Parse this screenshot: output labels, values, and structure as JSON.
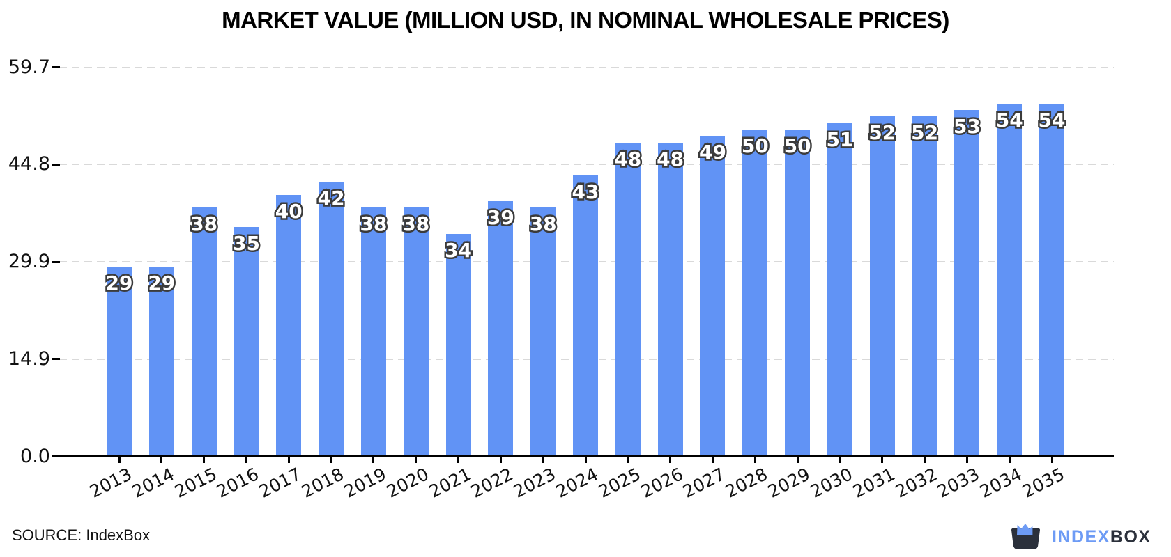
{
  "title": "MARKET VALUE (MILLION USD, IN NOMINAL WHOLESALE PRICES)",
  "source_note": "SOURCE: IndexBox",
  "logo": {
    "word_index": "INDEX",
    "word_box": "BOX"
  },
  "colors": {
    "bar": "#6193F5",
    "value_label_fill": "#ffffff",
    "value_label_stroke": "#3b3b3b",
    "gridline": "#d9d9d9",
    "axis": "#000000",
    "logo_blue": "#6d9bf5",
    "logo_dark": "#2b303b"
  },
  "chart_data": {
    "type": "bar",
    "title": "MARKET VALUE (MILLION USD, IN NOMINAL WHOLESALE PRICES)",
    "categories": [
      "2013",
      "2014",
      "2015",
      "2016",
      "2017",
      "2018",
      "2019",
      "2020",
      "2021",
      "2022",
      "2023",
      "2024",
      "2025",
      "2026",
      "2027",
      "2028",
      "2029",
      "2030",
      "2031",
      "2032",
      "2033",
      "2034",
      "2035"
    ],
    "values": [
      29,
      29,
      38,
      35,
      40,
      42,
      38,
      38,
      34,
      39,
      38,
      43,
      48,
      48,
      49,
      50,
      50,
      51,
      52,
      52,
      53,
      54,
      54
    ],
    "xlabel": "",
    "ylabel": "",
    "ylim": [
      0,
      59.7
    ],
    "yticks": [
      {
        "label": "0.0",
        "value": 0
      },
      {
        "label": "14.9",
        "value": 14.925
      },
      {
        "label": "29.9",
        "value": 29.85
      },
      {
        "label": "44.8",
        "value": 44.775
      },
      {
        "label": "59.7",
        "value": 59.7
      }
    ],
    "grid": "horizontal-dashed",
    "legend_position": "none",
    "value_labels": "inside-top, white with dark outline",
    "xtick_rotation_deg": -27
  }
}
